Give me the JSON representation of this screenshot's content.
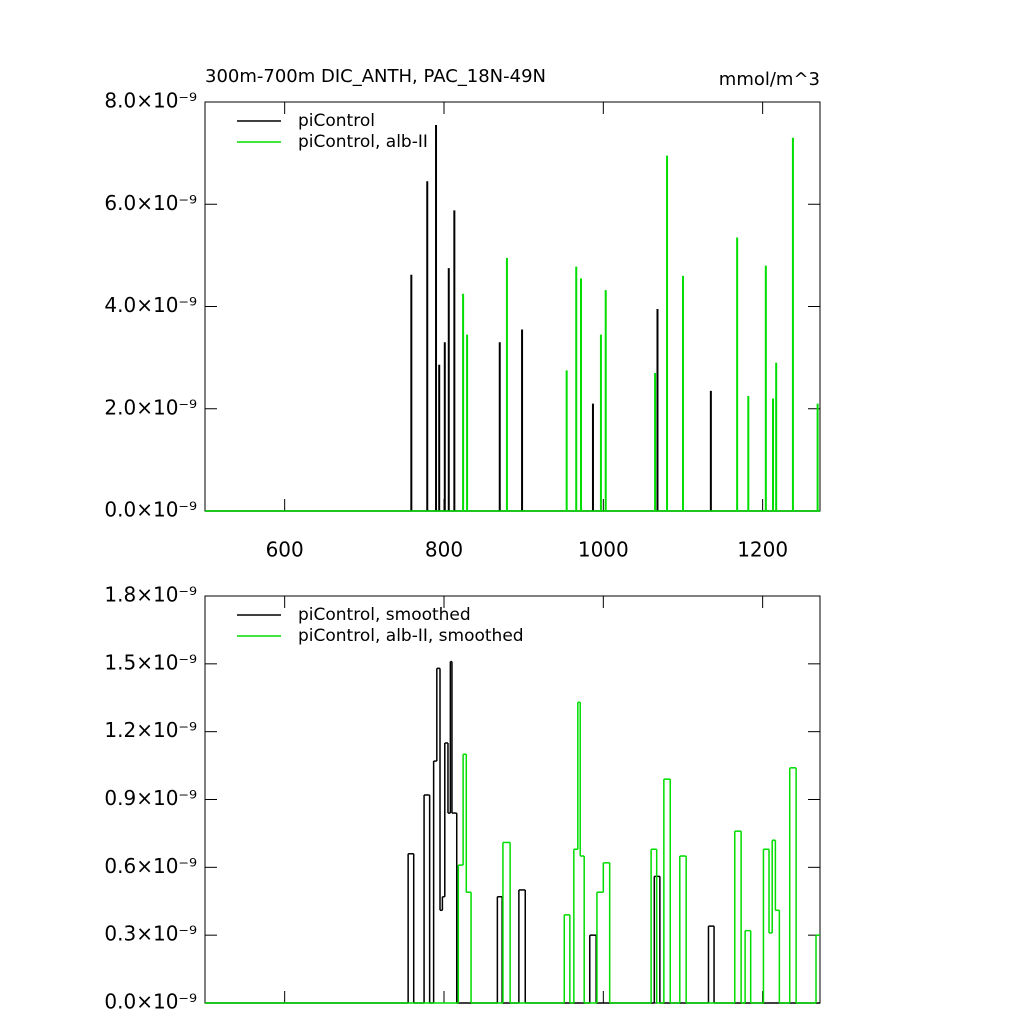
{
  "chart_data": [
    {
      "type": "spike",
      "title": "300m-700m DIC_ANTH, PAC_18N-49N",
      "units": "mmol/m^3",
      "legend": "upper left",
      "xlim": [
        500,
        1272
      ],
      "xticks": [
        600,
        800,
        1000,
        1200
      ],
      "xtick_labels": true,
      "ylim": [
        0,
        8e-09
      ],
      "yticks": [
        {
          "value": 0,
          "label": "0.0×10⁻⁹"
        },
        {
          "value": 2e-09,
          "label": "2.0×10⁻⁹"
        },
        {
          "value": 4e-09,
          "label": "4.0×10⁻⁹"
        },
        {
          "value": 6e-09,
          "label": "6.0×10⁻⁹"
        },
        {
          "value": 8e-09,
          "label": "8.0×10⁻⁹"
        }
      ],
      "series": [
        {
          "name": "piControl",
          "color": "#000000",
          "x": [
            759,
            779,
            790,
            794,
            801,
            806,
            813,
            870,
            898,
            987,
            1068,
            1135
          ],
          "values": [
            4.62e-09,
            6.45e-09,
            7.55e-09,
            2.86e-09,
            3.3e-09,
            4.75e-09,
            5.88e-09,
            3.3e-09,
            3.55e-09,
            2.1e-09,
            3.95e-09,
            2.35e-09
          ]
        },
        {
          "name": "piControl, alb-II",
          "color": "#00dd00",
          "x": [
            824,
            829,
            879,
            954,
            966,
            972,
            997,
            1003,
            1065,
            1080,
            1100,
            1168,
            1182,
            1204,
            1213,
            1217,
            1238,
            1269
          ],
          "values": [
            4.25e-09,
            3.45e-09,
            4.95e-09,
            2.75e-09,
            4.78e-09,
            4.55e-09,
            3.45e-09,
            4.32e-09,
            2.7e-09,
            6.95e-09,
            4.6e-09,
            5.35e-09,
            2.25e-09,
            4.8e-09,
            2.2e-09,
            2.9e-09,
            7.3e-09,
            2.1e-09
          ]
        }
      ]
    },
    {
      "type": "step",
      "legend": "upper left",
      "xlim": [
        500,
        1272
      ],
      "xticks": [
        600,
        800,
        1000,
        1200
      ],
      "xtick_labels": false,
      "ylim": [
        0,
        1.8e-09
      ],
      "yticks": [
        {
          "value": 0,
          "label": "0.0×10⁻⁹"
        },
        {
          "value": 3e-10,
          "label": "0.3×10⁻⁹"
        },
        {
          "value": 6e-10,
          "label": "0.6×10⁻⁹"
        },
        {
          "value": 9e-10,
          "label": "0.9×10⁻⁹"
        },
        {
          "value": 1.2e-09,
          "label": "1.2×10⁻⁹"
        },
        {
          "value": 1.5e-09,
          "label": "1.5×10⁻⁹"
        },
        {
          "value": 1.8e-09,
          "label": "1.8×10⁻⁹"
        }
      ],
      "series": [
        {
          "name": "piControl, smoothed",
          "color": "#000000",
          "bins": [
            500,
            755,
            762,
            775,
            782,
            787,
            791,
            795,
            798,
            801,
            805,
            808,
            810,
            816,
            867,
            873,
            894,
            902,
            983,
            991,
            1064,
            1071,
            1132,
            1139,
            1272
          ],
          "values": [
            0,
            6.6e-10,
            0,
            9.2e-10,
            0,
            1.07e-09,
            1.48e-09,
            4.1e-10,
            4.7e-10,
            1.15e-09,
            8.4e-10,
            1.51e-09,
            8.4e-10,
            0,
            4.7e-10,
            0,
            5e-10,
            0,
            3e-10,
            0,
            5.6e-10,
            0,
            3.4e-10,
            0
          ]
        },
        {
          "name": "piControl, alb-II, smoothed",
          "color": "#00dd00",
          "bins": [
            500,
            818,
            824,
            828,
            834,
            874,
            883,
            951,
            958,
            963,
            968,
            971,
            976,
            992,
            1000,
            1008,
            1060,
            1067,
            1076,
            1084,
            1096,
            1104,
            1165,
            1173,
            1178,
            1185,
            1201,
            1208,
            1212,
            1216,
            1221,
            1234,
            1242,
            1267,
            1272
          ],
          "values": [
            0,
            6.1e-10,
            1.1e-09,
            4.9e-10,
            0,
            7.1e-10,
            0,
            3.9e-10,
            0,
            6.8e-10,
            1.33e-09,
            6.5e-10,
            0,
            4.9e-10,
            6.2e-10,
            0,
            6.8e-10,
            0,
            9.9e-10,
            0,
            6.5e-10,
            0,
            7.6e-10,
            0,
            3.2e-10,
            0,
            6.8e-10,
            3.1e-10,
            7.2e-10,
            4.1e-10,
            0,
            1.04e-09,
            0,
            3e-10
          ]
        }
      ]
    }
  ]
}
